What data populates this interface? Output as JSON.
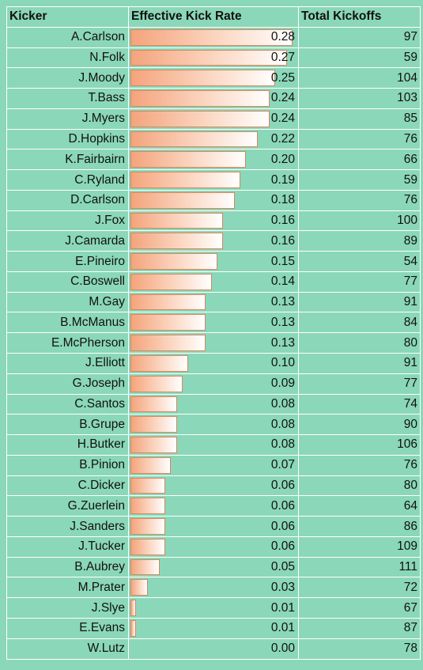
{
  "headers": {
    "kicker": "Kicker",
    "rate": "Effective Kick Rate",
    "kickoffs": "Total Kickoffs"
  },
  "colors": {
    "background": "#8bd7b9",
    "bar_start": "#f4a47c",
    "bar_end": "#ffffff",
    "bar_border": "#d9855a",
    "grid": "#ffffff"
  },
  "chart_data": {
    "type": "table",
    "columns": [
      "Kicker",
      "Effective Kick Rate",
      "Total Kickoffs"
    ],
    "bar_column": "Effective Kick Rate",
    "bar_max": 0.28,
    "rows": [
      {
        "kicker": "A.Carlson",
        "rate": "0.28",
        "kickoffs": "97"
      },
      {
        "kicker": "N.Folk",
        "rate": "0.27",
        "kickoffs": "59"
      },
      {
        "kicker": "J.Moody",
        "rate": "0.25",
        "kickoffs": "104"
      },
      {
        "kicker": "T.Bass",
        "rate": "0.24",
        "kickoffs": "103"
      },
      {
        "kicker": "J.Myers",
        "rate": "0.24",
        "kickoffs": "85"
      },
      {
        "kicker": "D.Hopkins",
        "rate": "0.22",
        "kickoffs": "76"
      },
      {
        "kicker": "K.Fairbairn",
        "rate": "0.20",
        "kickoffs": "66"
      },
      {
        "kicker": "C.Ryland",
        "rate": "0.19",
        "kickoffs": "59"
      },
      {
        "kicker": "D.Carlson",
        "rate": "0.18",
        "kickoffs": "76"
      },
      {
        "kicker": "J.Fox",
        "rate": "0.16",
        "kickoffs": "100"
      },
      {
        "kicker": "J.Camarda",
        "rate": "0.16",
        "kickoffs": "89"
      },
      {
        "kicker": "E.Pineiro",
        "rate": "0.15",
        "kickoffs": "54"
      },
      {
        "kicker": "C.Boswell",
        "rate": "0.14",
        "kickoffs": "77"
      },
      {
        "kicker": "M.Gay",
        "rate": "0.13",
        "kickoffs": "91"
      },
      {
        "kicker": "B.McManus",
        "rate": "0.13",
        "kickoffs": "84"
      },
      {
        "kicker": "E.McPherson",
        "rate": "0.13",
        "kickoffs": "80"
      },
      {
        "kicker": "J.Elliott",
        "rate": "0.10",
        "kickoffs": "91"
      },
      {
        "kicker": "G.Joseph",
        "rate": "0.09",
        "kickoffs": "77"
      },
      {
        "kicker": "C.Santos",
        "rate": "0.08",
        "kickoffs": "74"
      },
      {
        "kicker": "B.Grupe",
        "rate": "0.08",
        "kickoffs": "90"
      },
      {
        "kicker": "H.Butker",
        "rate": "0.08",
        "kickoffs": "106"
      },
      {
        "kicker": "B.Pinion",
        "rate": "0.07",
        "kickoffs": "76"
      },
      {
        "kicker": "C.Dicker",
        "rate": "0.06",
        "kickoffs": "80"
      },
      {
        "kicker": "G.Zuerlein",
        "rate": "0.06",
        "kickoffs": "64"
      },
      {
        "kicker": "J.Sanders",
        "rate": "0.06",
        "kickoffs": "86"
      },
      {
        "kicker": "J.Tucker",
        "rate": "0.06",
        "kickoffs": "109"
      },
      {
        "kicker": "B.Aubrey",
        "rate": "0.05",
        "kickoffs": "111"
      },
      {
        "kicker": "M.Prater",
        "rate": "0.03",
        "kickoffs": "72"
      },
      {
        "kicker": "J.Slye",
        "rate": "0.01",
        "kickoffs": "67"
      },
      {
        "kicker": "E.Evans",
        "rate": "0.01",
        "kickoffs": "87"
      },
      {
        "kicker": "W.Lutz",
        "rate": "0.00",
        "kickoffs": "78"
      }
    ]
  }
}
